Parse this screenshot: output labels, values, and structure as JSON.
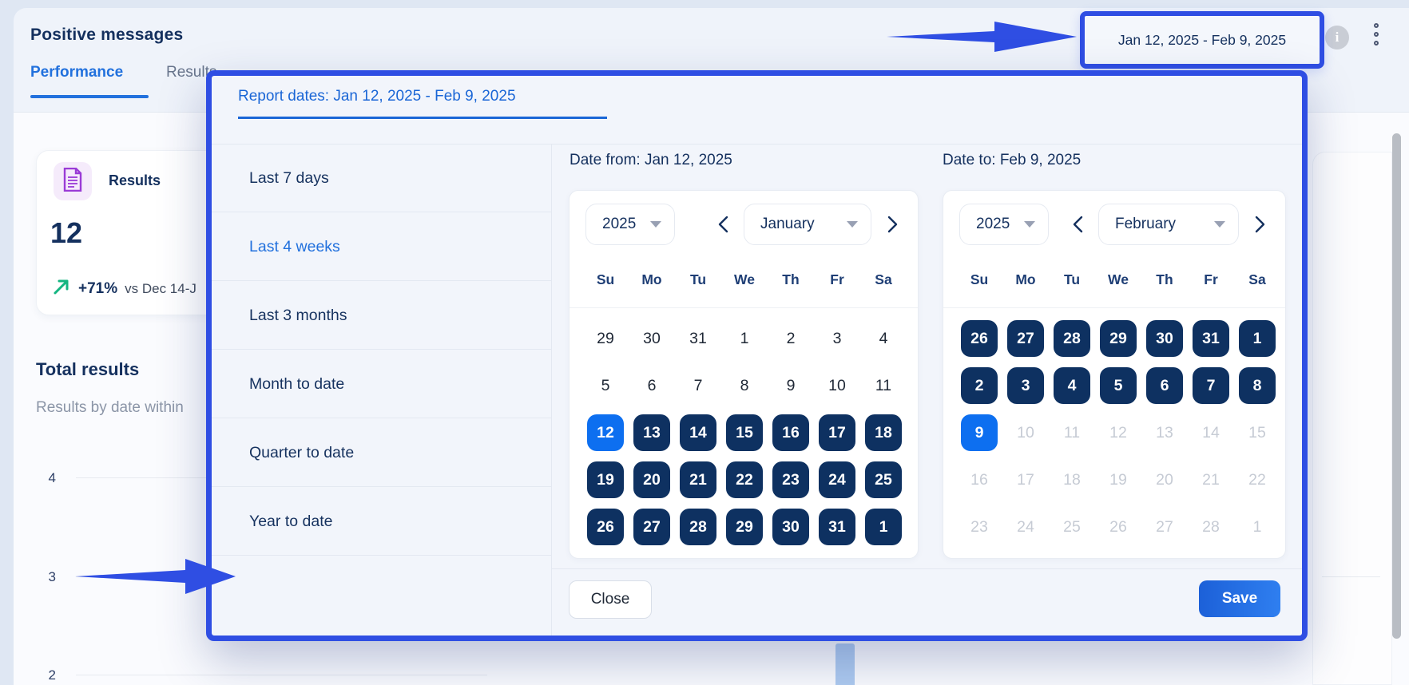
{
  "colors": {
    "annotation_blue": "#2f4ee3",
    "accent_blue": "#2271dd",
    "selected_day_blue": "#0d6ff0",
    "range_day_navy": "#0e3161",
    "navy_text": "#14305e",
    "positive_green": "#14b581",
    "doc_icon_purple": "#9a3bd6"
  },
  "header": {
    "title": "Positive messages",
    "tabs": [
      {
        "label": "Performance",
        "active": true
      },
      {
        "label": "Results",
        "active": false
      }
    ],
    "date_range_button": "Jan 12, 2025 - Feb 9, 2025",
    "info_icon_glyph": "i"
  },
  "results_card": {
    "label": "Results",
    "value": "12",
    "delta": "+71%",
    "comparison": "vs Dec 14-J"
  },
  "chart": {
    "title": "Total results",
    "subtitle": "Results by date within",
    "y_ticks": [
      "4",
      "3",
      "2"
    ]
  },
  "modal": {
    "title": "Report dates: Jan 12, 2025 - Feb 9, 2025",
    "presets": [
      {
        "label": "Last 7 days",
        "active": false
      },
      {
        "label": "Last 4 weeks",
        "active": true
      },
      {
        "label": "Last 3 months",
        "active": false
      },
      {
        "label": "Month to date",
        "active": false
      },
      {
        "label": "Quarter to date",
        "active": false
      },
      {
        "label": "Year to date",
        "active": false
      }
    ],
    "from": {
      "title": "Date from: Jan 12, 2025",
      "year": "2025",
      "month": "January",
      "dow": [
        "Su",
        "Mo",
        "Tu",
        "We",
        "Th",
        "Fr",
        "Sa"
      ],
      "days": [
        {
          "n": "29",
          "t": "plain"
        },
        {
          "n": "30",
          "t": "plain"
        },
        {
          "n": "31",
          "t": "plain"
        },
        {
          "n": "1",
          "t": "plain"
        },
        {
          "n": "2",
          "t": "plain"
        },
        {
          "n": "3",
          "t": "plain"
        },
        {
          "n": "4",
          "t": "plain"
        },
        {
          "n": "5",
          "t": "plain"
        },
        {
          "n": "6",
          "t": "plain"
        },
        {
          "n": "7",
          "t": "plain"
        },
        {
          "n": "8",
          "t": "plain"
        },
        {
          "n": "9",
          "t": "plain"
        },
        {
          "n": "10",
          "t": "plain"
        },
        {
          "n": "11",
          "t": "plain"
        },
        {
          "n": "12",
          "t": "sel"
        },
        {
          "n": "13",
          "t": "range"
        },
        {
          "n": "14",
          "t": "range"
        },
        {
          "n": "15",
          "t": "range"
        },
        {
          "n": "16",
          "t": "range"
        },
        {
          "n": "17",
          "t": "range"
        },
        {
          "n": "18",
          "t": "range"
        },
        {
          "n": "19",
          "t": "range"
        },
        {
          "n": "20",
          "t": "range"
        },
        {
          "n": "21",
          "t": "range"
        },
        {
          "n": "22",
          "t": "range"
        },
        {
          "n": "23",
          "t": "range"
        },
        {
          "n": "24",
          "t": "range"
        },
        {
          "n": "25",
          "t": "range"
        },
        {
          "n": "26",
          "t": "range"
        },
        {
          "n": "27",
          "t": "range"
        },
        {
          "n": "28",
          "t": "range"
        },
        {
          "n": "29",
          "t": "range"
        },
        {
          "n": "30",
          "t": "range"
        },
        {
          "n": "31",
          "t": "range"
        },
        {
          "n": "1",
          "t": "range"
        }
      ]
    },
    "to": {
      "title": "Date to: Feb 9, 2025",
      "year": "2025",
      "month": "February",
      "dow": [
        "Su",
        "Mo",
        "Tu",
        "We",
        "Th",
        "Fr",
        "Sa"
      ],
      "days": [
        {
          "n": "26",
          "t": "range"
        },
        {
          "n": "27",
          "t": "range"
        },
        {
          "n": "28",
          "t": "range"
        },
        {
          "n": "29",
          "t": "range"
        },
        {
          "n": "30",
          "t": "range"
        },
        {
          "n": "31",
          "t": "range"
        },
        {
          "n": "1",
          "t": "range"
        },
        {
          "n": "2",
          "t": "range"
        },
        {
          "n": "3",
          "t": "range"
        },
        {
          "n": "4",
          "t": "range"
        },
        {
          "n": "5",
          "t": "range"
        },
        {
          "n": "6",
          "t": "range"
        },
        {
          "n": "7",
          "t": "range"
        },
        {
          "n": "8",
          "t": "range"
        },
        {
          "n": "9",
          "t": "sel"
        },
        {
          "n": "10",
          "t": "dis"
        },
        {
          "n": "11",
          "t": "dis"
        },
        {
          "n": "12",
          "t": "dis"
        },
        {
          "n": "13",
          "t": "dis"
        },
        {
          "n": "14",
          "t": "dis"
        },
        {
          "n": "15",
          "t": "dis"
        },
        {
          "n": "16",
          "t": "dis"
        },
        {
          "n": "17",
          "t": "dis"
        },
        {
          "n": "18",
          "t": "dis"
        },
        {
          "n": "19",
          "t": "dis"
        },
        {
          "n": "20",
          "t": "dis"
        },
        {
          "n": "21",
          "t": "dis"
        },
        {
          "n": "22",
          "t": "dis"
        },
        {
          "n": "23",
          "t": "dis"
        },
        {
          "n": "24",
          "t": "dis"
        },
        {
          "n": "25",
          "t": "dis"
        },
        {
          "n": "26",
          "t": "dis"
        },
        {
          "n": "27",
          "t": "dis"
        },
        {
          "n": "28",
          "t": "dis"
        },
        {
          "n": "1",
          "t": "dis"
        }
      ]
    },
    "close_label": "Close",
    "save_label": "Save"
  }
}
